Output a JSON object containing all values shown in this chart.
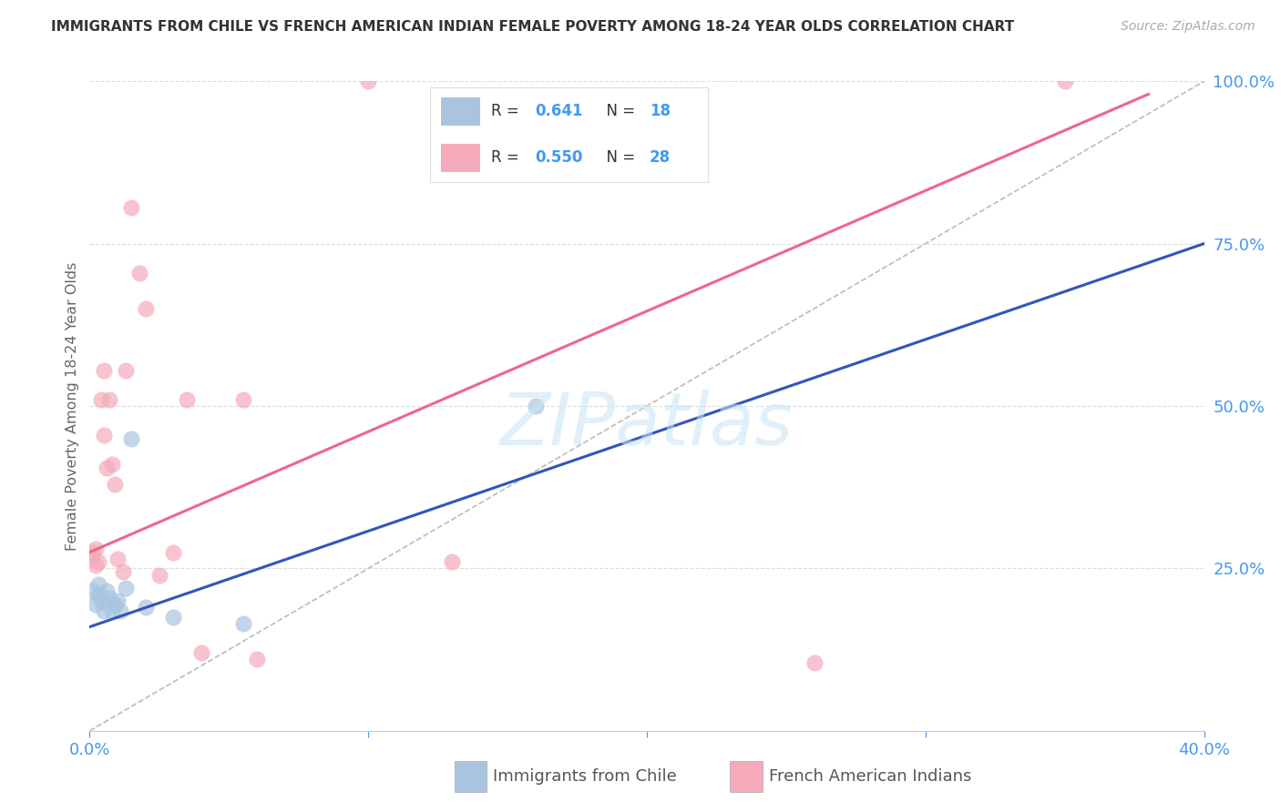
{
  "title": "IMMIGRANTS FROM CHILE VS FRENCH AMERICAN INDIAN FEMALE POVERTY AMONG 18-24 YEAR OLDS CORRELATION CHART",
  "source": "Source: ZipAtlas.com",
  "ylabel": "Female Poverty Among 18-24 Year Olds",
  "xlim": [
    0.0,
    0.4
  ],
  "ylim": [
    0.0,
    1.0
  ],
  "xticks": [
    0.0,
    0.1,
    0.2,
    0.3,
    0.4
  ],
  "xtick_labels": [
    "0.0%",
    "",
    "",
    "",
    "40.0%"
  ],
  "yticks_right": [
    0.0,
    0.25,
    0.5,
    0.75,
    1.0
  ],
  "ytick_labels_right": [
    "",
    "25.0%",
    "50.0%",
    "75.0%",
    "100.0%"
  ],
  "watermark": "ZIPatlas",
  "color_blue": "#A8C4E0",
  "color_pink": "#F4AABB",
  "color_blue_line": "#3355BB",
  "color_pink_line": "#EE6688",
  "blue_scatter_x": [
    0.001,
    0.002,
    0.003,
    0.003,
    0.004,
    0.005,
    0.006,
    0.007,
    0.008,
    0.009,
    0.01,
    0.011,
    0.013,
    0.015,
    0.02,
    0.03,
    0.055,
    0.16
  ],
  "blue_scatter_y": [
    0.215,
    0.195,
    0.21,
    0.225,
    0.2,
    0.185,
    0.215,
    0.205,
    0.185,
    0.195,
    0.2,
    0.185,
    0.22,
    0.45,
    0.19,
    0.175,
    0.165,
    0.5
  ],
  "pink_scatter_x": [
    0.001,
    0.001,
    0.002,
    0.002,
    0.003,
    0.004,
    0.005,
    0.005,
    0.006,
    0.007,
    0.008,
    0.009,
    0.01,
    0.012,
    0.013,
    0.015,
    0.018,
    0.02,
    0.025,
    0.03,
    0.035,
    0.04,
    0.055,
    0.06,
    0.1,
    0.13,
    0.26,
    0.35
  ],
  "pink_scatter_y": [
    0.265,
    0.275,
    0.255,
    0.28,
    0.26,
    0.51,
    0.555,
    0.455,
    0.405,
    0.51,
    0.41,
    0.38,
    0.265,
    0.245,
    0.555,
    0.805,
    0.705,
    0.65,
    0.24,
    0.275,
    0.51,
    0.12,
    0.51,
    0.11,
    1.0,
    0.26,
    0.105,
    1.0
  ],
  "blue_line_x": [
    0.0,
    0.4
  ],
  "blue_line_y": [
    0.16,
    0.75
  ],
  "pink_line_x": [
    0.0,
    0.38
  ],
  "pink_line_y": [
    0.275,
    0.98
  ],
  "ref_line_x": [
    0.0,
    0.4
  ],
  "ref_line_y": [
    0.0,
    1.0
  ],
  "legend_label_blue": "Immigrants from Chile",
  "legend_label_pink": "French American Indians",
  "legend_r1": "R = 0.641",
  "legend_n1": "N = 18",
  "legend_r2": "R = 0.550",
  "legend_n2": "N = 28"
}
